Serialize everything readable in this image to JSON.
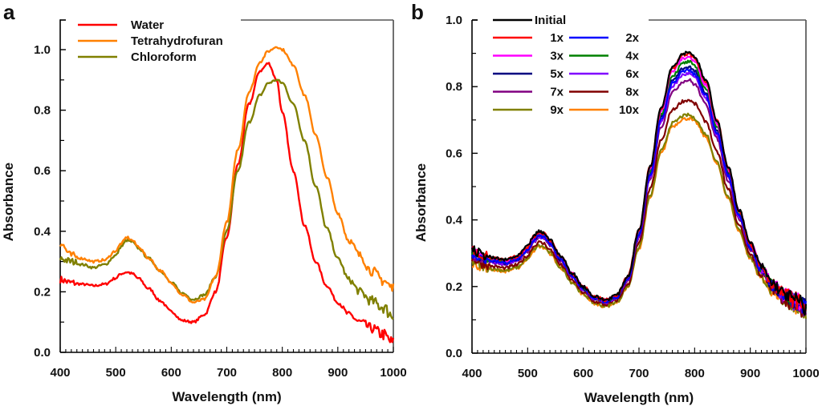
{
  "chart_data": [
    {
      "panel": "a",
      "type": "line",
      "title": "",
      "xlabel": "Wavelength (nm)",
      "ylabel": "Absorbance",
      "xlim": [
        400,
        1000
      ],
      "ylim": [
        0.0,
        1.1
      ],
      "xticks": [
        400,
        500,
        600,
        700,
        800,
        900,
        1000
      ],
      "xtick_labels": [
        "400",
        "500",
        "600",
        "700",
        "800",
        "900",
        "1000"
      ],
      "yticks": [
        0.0,
        0.2,
        0.4,
        0.6,
        0.8,
        1.0
      ],
      "ytick_labels": [
        "0.0",
        "0.2",
        "0.4",
        "0.6",
        "0.8",
        "1.0"
      ],
      "grid": false,
      "legend": {
        "position": "top-left"
      },
      "x": [
        400,
        420,
        440,
        460,
        480,
        500,
        510,
        520,
        530,
        540,
        560,
        580,
        600,
        620,
        640,
        660,
        680,
        700,
        720,
        740,
        760,
        775,
        790,
        800,
        820,
        840,
        860,
        880,
        900,
        920,
        940,
        960,
        980,
        1000
      ],
      "series": [
        {
          "name": "Water",
          "color": "#ff0000",
          "values": [
            0.24,
            0.23,
            0.225,
            0.22,
            0.225,
            0.245,
            0.26,
            0.265,
            0.26,
            0.245,
            0.21,
            0.17,
            0.135,
            0.105,
            0.1,
            0.125,
            0.2,
            0.38,
            0.62,
            0.82,
            0.93,
            0.955,
            0.9,
            0.79,
            0.6,
            0.42,
            0.3,
            0.22,
            0.165,
            0.125,
            0.1,
            0.08,
            0.06,
            0.03
          ]
        },
        {
          "name": "Tetrahydrofuran",
          "color": "#ff8000",
          "values": [
            0.36,
            0.32,
            0.31,
            0.3,
            0.305,
            0.335,
            0.36,
            0.38,
            0.37,
            0.35,
            0.31,
            0.27,
            0.23,
            0.19,
            0.165,
            0.175,
            0.25,
            0.43,
            0.67,
            0.86,
            0.96,
            0.995,
            1.01,
            1.0,
            0.95,
            0.85,
            0.72,
            0.58,
            0.46,
            0.37,
            0.32,
            0.27,
            0.24,
            0.21
          ]
        },
        {
          "name": "Chloroform",
          "color": "#808000",
          "values": [
            0.31,
            0.3,
            0.29,
            0.28,
            0.29,
            0.32,
            0.35,
            0.37,
            0.365,
            0.345,
            0.31,
            0.27,
            0.23,
            0.195,
            0.175,
            0.19,
            0.25,
            0.4,
            0.6,
            0.76,
            0.85,
            0.89,
            0.9,
            0.89,
            0.82,
            0.7,
            0.55,
            0.41,
            0.31,
            0.24,
            0.2,
            0.17,
            0.15,
            0.12
          ]
        }
      ]
    },
    {
      "panel": "b",
      "type": "line",
      "title": "",
      "xlabel": "Wavelength (nm)",
      "ylabel": "Absorbance",
      "xlim": [
        400,
        1000
      ],
      "ylim": [
        0.0,
        1.0
      ],
      "xticks": [
        400,
        500,
        600,
        700,
        800,
        900,
        1000
      ],
      "xtick_labels": [
        "400",
        "500",
        "600",
        "700",
        "800",
        "900",
        "1000"
      ],
      "yticks": [
        0.0,
        0.2,
        0.4,
        0.6,
        0.8,
        1.0
      ],
      "ytick_labels": [
        "0.0",
        "0.2",
        "0.4",
        "0.6",
        "0.8",
        "1.0"
      ],
      "grid": false,
      "legend": {
        "position": "top-left",
        "columns": 2
      },
      "x": [
        400,
        420,
        440,
        460,
        480,
        500,
        510,
        520,
        530,
        540,
        560,
        580,
        600,
        620,
        640,
        660,
        680,
        700,
        720,
        740,
        760,
        780,
        790,
        800,
        820,
        840,
        860,
        880,
        900,
        920,
        940,
        960,
        980,
        1000
      ],
      "base_shape": [
        0.31,
        0.295,
        0.285,
        0.28,
        0.29,
        0.32,
        0.35,
        0.365,
        0.36,
        0.34,
        0.29,
        0.24,
        0.2,
        0.17,
        0.16,
        0.175,
        0.23,
        0.37,
        0.56,
        0.74,
        0.86,
        0.9,
        0.905,
        0.89,
        0.82,
        0.7,
        0.56,
        0.43,
        0.33,
        0.26,
        0.21,
        0.18,
        0.16,
        0.14
      ],
      "series": [
        {
          "name": "Initial",
          "color": "#000000",
          "peak": 0.905
        },
        {
          "name": "1x",
          "color": "#ff0000",
          "peak": 0.9
        },
        {
          "name": "2x",
          "color": "#0000ff",
          "peak": 0.85
        },
        {
          "name": "3x",
          "color": "#ff00ff",
          "peak": 0.89
        },
        {
          "name": "4x",
          "color": "#008000",
          "peak": 0.875
        },
        {
          "name": "5x",
          "color": "#000080",
          "peak": 0.86
        },
        {
          "name": "6x",
          "color": "#8000ff",
          "peak": 0.84
        },
        {
          "name": "7x",
          "color": "#800080",
          "peak": 0.82
        },
        {
          "name": "8x",
          "color": "#800000",
          "peak": 0.76
        },
        {
          "name": "9x",
          "color": "#808000",
          "peak": 0.715
        },
        {
          "name": "10x",
          "color": "#ff8000",
          "peak": 0.705
        }
      ]
    }
  ],
  "panels": {
    "a": "a",
    "b": "b"
  }
}
